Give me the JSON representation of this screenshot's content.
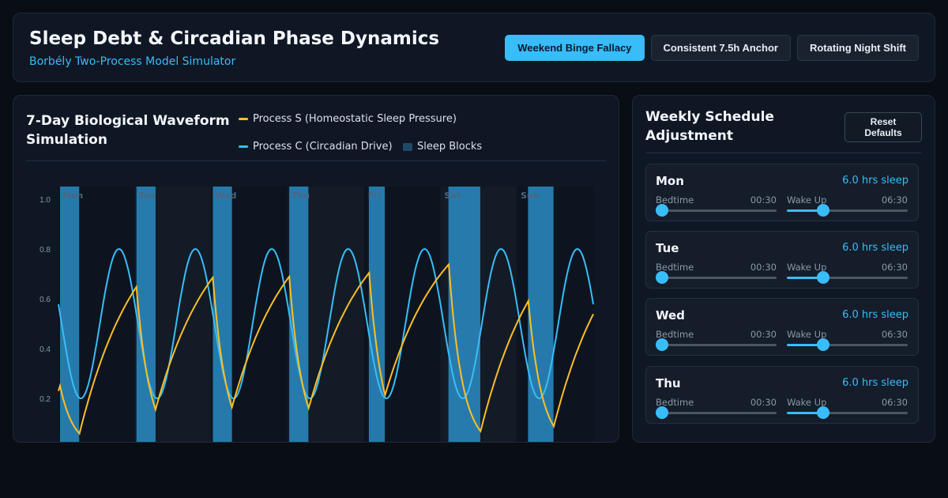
{
  "header": {
    "title": "Sleep Debt & Circadian Phase Dynamics",
    "subtitle": "Borbély Two-Process Model Simulator",
    "presets": [
      {
        "label": "Weekend Binge Fallacy",
        "active": true
      },
      {
        "label": "Consistent 7.5h Anchor",
        "active": false
      },
      {
        "label": "Rotating Night Shift",
        "active": false
      }
    ]
  },
  "chart_panel": {
    "title": "7-Day Biological Waveform Simulation",
    "legend": [
      {
        "label": "Process S (Homeostatic Sleep Pressure)",
        "color": "#fbbf24"
      },
      {
        "label": "Process C (Circadian Drive)",
        "color": "#38bdf8"
      },
      {
        "label": "Sleep Blocks",
        "color": "#1e4a6a"
      }
    ]
  },
  "chart_data": {
    "type": "line",
    "x_unit": "hours since Mon 00:00",
    "xlim": [
      0,
      168
    ],
    "ylim": [
      0,
      1.0
    ],
    "y_ticks": [
      "1.0",
      "0.8",
      "0.6",
      "0.4",
      "0.2"
    ],
    "y_tick_values": [
      1.0,
      0.8,
      0.6,
      0.4,
      0.2
    ],
    "day_labels": [
      "Mon",
      "Tue",
      "Wed",
      "Thu",
      "Fri",
      "Sat",
      "Sun"
    ],
    "sleep_blocks": [
      {
        "day": "Mon",
        "start": 0.5,
        "end": 6.5
      },
      {
        "day": "Tue",
        "start": 24.5,
        "end": 30.5
      },
      {
        "day": "Wed",
        "start": 48.5,
        "end": 54.5
      },
      {
        "day": "Thu",
        "start": 72.5,
        "end": 78.5
      },
      {
        "day": "Fri",
        "start": 97.5,
        "end": 102.5
      },
      {
        "day": "Sat",
        "start": 122.5,
        "end": 132.5
      },
      {
        "day": "Sun",
        "start": 147.5,
        "end": 155.5
      }
    ],
    "series": [
      {
        "name": "Process S (Homeostatic Sleep Pressure)",
        "color": "#fbbf24"
      },
      {
        "name": "Process C (Circadian Drive)",
        "color": "#38bdf8"
      }
    ],
    "process_c": {
      "min": 0.2,
      "max": 0.8,
      "period_h": 24,
      "trough_h": 7
    },
    "process_s": {
      "start_value": 0.23,
      "rise_tau_h": 18.2,
      "decay_tau_h": 4.2,
      "upper": 1.0,
      "lower": 0.0
    }
  },
  "schedule_panel": {
    "title": "Weekly Schedule Adjustment",
    "reset_label": "Reset Defaults",
    "days": [
      {
        "name": "Mon",
        "hours": "6.0 hrs sleep",
        "bedtime_label": "Bedtime",
        "bedtime": "00:30",
        "bedtime_fraction": 0.05,
        "wake_label": "Wake Up",
        "wake": "06:30",
        "wake_fraction": 0.3
      },
      {
        "name": "Tue",
        "hours": "6.0 hrs sleep",
        "bedtime_label": "Bedtime",
        "bedtime": "00:30",
        "bedtime_fraction": 0.05,
        "wake_label": "Wake Up",
        "wake": "06:30",
        "wake_fraction": 0.3
      },
      {
        "name": "Wed",
        "hours": "6.0 hrs sleep",
        "bedtime_label": "Bedtime",
        "bedtime": "00:30",
        "bedtime_fraction": 0.05,
        "wake_label": "Wake Up",
        "wake": "06:30",
        "wake_fraction": 0.3
      },
      {
        "name": "Thu",
        "hours": "6.0 hrs sleep",
        "bedtime_label": "Bedtime",
        "bedtime": "00:30",
        "bedtime_fraction": 0.05,
        "wake_label": "Wake Up",
        "wake": "06:30",
        "wake_fraction": 0.3
      }
    ]
  }
}
